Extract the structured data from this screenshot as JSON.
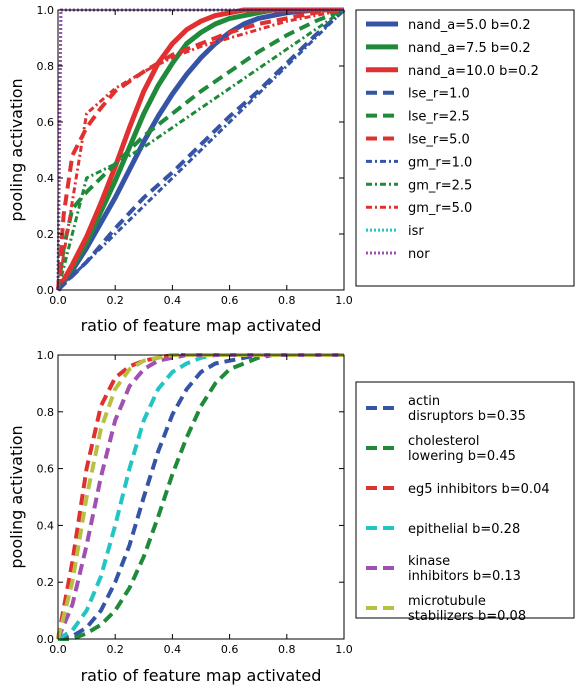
{
  "chart_data": [
    {
      "type": "line",
      "xlabel": "ratio of feature map activated",
      "ylabel": "pooling activation",
      "xlim": [
        0,
        1
      ],
      "ylim": [
        0,
        1
      ],
      "x_ticks": [
        "0.0",
        "0.2",
        "0.4",
        "0.6",
        "0.8",
        "1.0"
      ],
      "y_ticks": [
        "0.0",
        "0.2",
        "0.4",
        "0.6",
        "0.8",
        "1.0"
      ],
      "grid": false,
      "legend_position": "right-outside",
      "series": [
        {
          "name": "nand_a=5.0 b=0.2",
          "color": "#3554a6",
          "style": "solid",
          "x": [
            0,
            0.05,
            0.1,
            0.15,
            0.2,
            0.25,
            0.3,
            0.35,
            0.4,
            0.45,
            0.5,
            0.55,
            0.6,
            0.65,
            0.7,
            0.75,
            0.8,
            0.85,
            0.9,
            0.95,
            1.0
          ],
          "y": [
            0,
            0.07,
            0.15,
            0.24,
            0.33,
            0.43,
            0.53,
            0.62,
            0.7,
            0.77,
            0.83,
            0.88,
            0.92,
            0.95,
            0.97,
            0.98,
            0.99,
            0.995,
            1,
            1,
            1
          ]
        },
        {
          "name": "nand_a=7.5 b=0.2",
          "color": "#1f8a3a",
          "style": "solid",
          "x": [
            0,
            0.05,
            0.1,
            0.15,
            0.2,
            0.25,
            0.3,
            0.35,
            0.4,
            0.45,
            0.5,
            0.55,
            0.6,
            0.65,
            0.7,
            0.75,
            0.8,
            0.85,
            0.9,
            0.95,
            1.0
          ],
          "y": [
            0,
            0.08,
            0.17,
            0.28,
            0.39,
            0.51,
            0.63,
            0.73,
            0.81,
            0.88,
            0.92,
            0.95,
            0.97,
            0.98,
            0.99,
            1,
            1,
            1,
            1,
            1,
            1
          ]
        },
        {
          "name": "nand_a=10.0 b=0.2",
          "color": "#e03030",
          "style": "solid",
          "x": [
            0,
            0.05,
            0.1,
            0.15,
            0.2,
            0.25,
            0.3,
            0.35,
            0.4,
            0.45,
            0.5,
            0.55,
            0.6,
            0.65,
            0.7,
            0.75,
            0.8,
            0.85,
            0.9,
            0.95,
            1.0
          ],
          "y": [
            0,
            0.09,
            0.19,
            0.31,
            0.44,
            0.58,
            0.71,
            0.81,
            0.88,
            0.93,
            0.96,
            0.98,
            0.99,
            1,
            1,
            1,
            1,
            1,
            1,
            1,
            1
          ]
        },
        {
          "name": "lse_r=1.0",
          "color": "#3554a6",
          "style": "dashed",
          "x": [
            0,
            0.1,
            0.2,
            0.3,
            0.4,
            0.5,
            0.6,
            0.7,
            0.8,
            0.9,
            1.0
          ],
          "y": [
            0,
            0.1,
            0.22,
            0.33,
            0.42,
            0.52,
            0.62,
            0.71,
            0.81,
            0.91,
            1.0
          ]
        },
        {
          "name": "lse_r=2.5",
          "color": "#1f8a3a",
          "style": "dashed",
          "x": [
            0,
            0.02,
            0.05,
            0.1,
            0.15,
            0.2,
            0.3,
            0.4,
            0.5,
            0.6,
            0.7,
            0.8,
            0.9,
            1.0
          ],
          "y": [
            0,
            0.15,
            0.29,
            0.35,
            0.4,
            0.45,
            0.55,
            0.63,
            0.71,
            0.78,
            0.85,
            0.91,
            0.96,
            1.0
          ]
        },
        {
          "name": "lse_r=5.0",
          "color": "#e03030",
          "style": "dashed",
          "x": [
            0,
            0.02,
            0.05,
            0.1,
            0.15,
            0.2,
            0.3,
            0.4,
            0.5,
            0.6,
            0.7,
            0.8,
            0.9,
            1.0
          ],
          "y": [
            0,
            0.27,
            0.48,
            0.58,
            0.65,
            0.71,
            0.78,
            0.84,
            0.88,
            0.92,
            0.95,
            0.97,
            0.99,
            1.0
          ]
        },
        {
          "name": "gm_r=1.0",
          "color": "#3554a6",
          "style": "dashdot",
          "x": [
            0,
            1.0
          ],
          "y": [
            0,
            1.0
          ]
        },
        {
          "name": "gm_r=2.5",
          "color": "#1f8a3a",
          "style": "dashdot",
          "x": [
            0,
            0.1,
            0.2,
            0.3,
            0.4,
            0.5,
            0.6,
            0.7,
            0.8,
            0.9,
            1.0
          ],
          "y": [
            0,
            0.4,
            0.45,
            0.51,
            0.58,
            0.65,
            0.72,
            0.79,
            0.86,
            0.93,
            1.0
          ]
        },
        {
          "name": "gm_r=5.0",
          "color": "#e03030",
          "style": "dashdot",
          "x": [
            0,
            0.1,
            0.2,
            0.3,
            0.4,
            0.5,
            0.6,
            0.7,
            0.8,
            0.9,
            1.0
          ],
          "y": [
            0,
            0.63,
            0.72,
            0.78,
            0.83,
            0.87,
            0.9,
            0.93,
            0.96,
            0.98,
            1.0
          ]
        },
        {
          "name": "isr",
          "color": "#22c4c4",
          "style": "dotted",
          "x": [
            0,
            0.01,
            1.0
          ],
          "y": [
            0,
            1.0,
            1.0
          ]
        },
        {
          "name": "nor",
          "color": "#a050b0",
          "style": "dotted",
          "x": [
            0,
            0.01,
            1.0
          ],
          "y": [
            0,
            1.0,
            1.0
          ]
        }
      ]
    },
    {
      "type": "line",
      "xlabel": "ratio of feature map activated",
      "ylabel": "pooling activation",
      "xlim": [
        0,
        1
      ],
      "ylim": [
        0,
        1
      ],
      "x_ticks": [
        "0.0",
        "0.2",
        "0.4",
        "0.6",
        "0.8",
        "1.0"
      ],
      "y_ticks": [
        "0.0",
        "0.2",
        "0.4",
        "0.6",
        "0.8",
        "1.0"
      ],
      "grid": false,
      "legend_position": "right-outside",
      "series": [
        {
          "name": "actin\ndisruptors b=0.35",
          "color": "#3554a6",
          "style": "dashed",
          "x": [
            0,
            0.05,
            0.1,
            0.15,
            0.2,
            0.25,
            0.3,
            0.35,
            0.4,
            0.45,
            0.5,
            0.55,
            0.6,
            0.65,
            0.7,
            0.75,
            0.8,
            0.85,
            0.9,
            0.95,
            1.0
          ],
          "y": [
            0,
            0.01,
            0.04,
            0.1,
            0.2,
            0.33,
            0.5,
            0.66,
            0.79,
            0.88,
            0.94,
            0.97,
            0.98,
            0.99,
            1,
            1,
            1,
            1,
            1,
            1,
            1
          ]
        },
        {
          "name": "cholesterol\nlowering b=0.45",
          "color": "#1f8a3a",
          "style": "dashed",
          "x": [
            0,
            0.05,
            0.1,
            0.15,
            0.2,
            0.25,
            0.3,
            0.35,
            0.4,
            0.45,
            0.5,
            0.55,
            0.6,
            0.65,
            0.7,
            0.75,
            0.8,
            0.85,
            0.9,
            0.95,
            1.0
          ],
          "y": [
            0,
            0,
            0.02,
            0.05,
            0.1,
            0.18,
            0.29,
            0.43,
            0.58,
            0.71,
            0.82,
            0.9,
            0.95,
            0.97,
            0.99,
            1,
            1,
            1,
            1,
            1,
            1
          ]
        },
        {
          "name": "eg5 inhibitors b=0.04",
          "color": "#e03030",
          "style": "dashed",
          "x": [
            0,
            0.05,
            0.1,
            0.15,
            0.2,
            0.25,
            0.3,
            0.35,
            0.4,
            0.45,
            0.5,
            0.55,
            0.6,
            0.65,
            0.7,
            0.75,
            0.8,
            0.85,
            0.9,
            0.95,
            1.0
          ],
          "y": [
            0,
            0.27,
            0.6,
            0.82,
            0.92,
            0.96,
            0.98,
            0.99,
            1,
            1,
            1,
            1,
            1,
            1,
            1,
            1,
            1,
            1,
            1,
            1,
            1
          ]
        },
        {
          "name": "epithelial b=0.28",
          "color": "#22c4c4",
          "style": "dashed",
          "x": [
            0,
            0.05,
            0.1,
            0.15,
            0.2,
            0.25,
            0.3,
            0.35,
            0.4,
            0.45,
            0.5,
            0.55,
            0.6,
            0.65,
            0.7,
            0.75,
            0.8,
            0.85,
            0.9,
            0.95,
            1.0
          ],
          "y": [
            0,
            0.03,
            0.1,
            0.22,
            0.4,
            0.6,
            0.77,
            0.88,
            0.94,
            0.97,
            0.99,
            1,
            1,
            1,
            1,
            1,
            1,
            1,
            1,
            1,
            1
          ]
        },
        {
          "name": "kinase\ninhibitors b=0.13",
          "color": "#a050b0",
          "style": "dashed",
          "x": [
            0,
            0.05,
            0.1,
            0.15,
            0.2,
            0.25,
            0.3,
            0.35,
            0.4,
            0.45,
            0.5,
            0.55,
            0.6,
            0.65,
            0.7,
            0.75,
            0.8,
            0.85,
            0.9,
            0.95,
            1.0
          ],
          "y": [
            0,
            0.12,
            0.33,
            0.57,
            0.77,
            0.89,
            0.95,
            0.98,
            0.99,
            1,
            1,
            1,
            1,
            1,
            1,
            1,
            1,
            1,
            1,
            1,
            1
          ]
        },
        {
          "name": "microtubule\nstabilizers b=0.08",
          "color": "#b8c040",
          "style": "dashed",
          "x": [
            0,
            0.05,
            0.1,
            0.15,
            0.2,
            0.25,
            0.3,
            0.35,
            0.4,
            0.45,
            0.5,
            0.55,
            0.6,
            0.65,
            0.7,
            0.75,
            0.8,
            0.85,
            0.9,
            0.95,
            1.0
          ],
          "y": [
            0,
            0.2,
            0.5,
            0.74,
            0.88,
            0.95,
            0.98,
            0.99,
            1,
            1,
            1,
            1,
            1,
            1,
            1,
            1,
            1,
            1,
            1,
            1,
            1
          ]
        }
      ]
    }
  ]
}
